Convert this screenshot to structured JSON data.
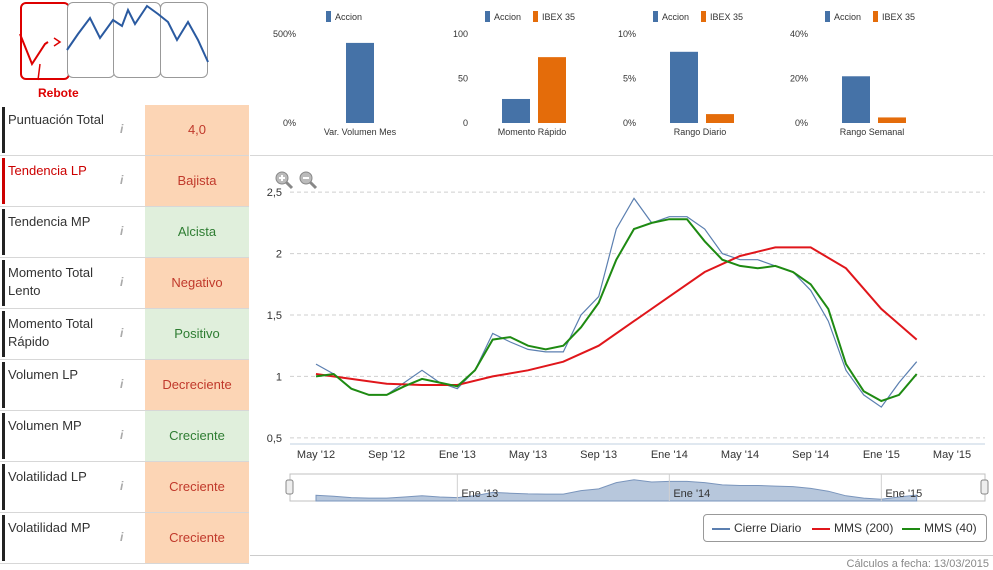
{
  "pattern": {
    "selected_label": "Rebote",
    "thumbnails": [
      "rebote",
      "pattern-2",
      "pattern-3",
      "pattern-4"
    ]
  },
  "indicators": [
    {
      "label": "Puntuación Total",
      "value": "4,0",
      "status": "neg",
      "highlight": false
    },
    {
      "label": "Tendencia LP",
      "value": "Bajista",
      "status": "neg",
      "highlight": true
    },
    {
      "label": "Tendencia MP",
      "value": "Alcista",
      "status": "pos",
      "highlight": false
    },
    {
      "label": "Momento Total Lento",
      "value": "Negativo",
      "status": "neg",
      "highlight": false
    },
    {
      "label": "Momento Total Rápido",
      "value": "Positivo",
      "status": "pos",
      "highlight": false
    },
    {
      "label": "Volumen LP",
      "value": "Decreciente",
      "status": "neg",
      "highlight": false
    },
    {
      "label": "Volumen MP",
      "value": "Creciente",
      "status": "pos",
      "highlight": false
    },
    {
      "label": "Volatilidad LP",
      "value": "Creciente",
      "status": "neg",
      "highlight": false
    },
    {
      "label": "Volatilidad MP",
      "value": "Creciente",
      "status": "neg",
      "highlight": false
    }
  ],
  "info_glyph": "i",
  "colors": {
    "accion": "#4572a7",
    "ibex": "#e46c0a",
    "price": "#5b7fb0",
    "mms200": "#e0161b",
    "mms40": "#1e8a12",
    "neg_bg": "#fcd5b5",
    "pos_bg": "#e0efdc"
  },
  "mini_charts": [
    {
      "title": "Var. Volumen Mes",
      "legend": [
        "Accion"
      ],
      "yticks": [
        "500%",
        "0%"
      ],
      "ymax": 500,
      "values": {
        "Accion": 450
      }
    },
    {
      "title": "Momento Rápido",
      "legend": [
        "Accion",
        "IBEX 35"
      ],
      "yticks": [
        "100",
        "50",
        "0"
      ],
      "ymax": 100,
      "values": {
        "Accion": 27,
        "IBEX 35": 74
      }
    },
    {
      "title": "Rango Diario",
      "legend": [
        "Accion",
        "IBEX 35"
      ],
      "yticks": [
        "10%",
        "5%",
        "0%"
      ],
      "ymax": 10,
      "values": {
        "Accion": 8,
        "IBEX 35": 1
      }
    },
    {
      "title": "Rango Semanal",
      "legend": [
        "Accion",
        "IBEX 35"
      ],
      "yticks": [
        "40%",
        "20%",
        "0%"
      ],
      "ymax": 40,
      "values": {
        "Accion": 21,
        "IBEX 35": 2.5
      }
    }
  ],
  "chart_data": {
    "type": "line",
    "y_ticks": [
      "2,5",
      "2",
      "1,5",
      "1",
      "0,5"
    ],
    "y_tick_values": [
      2.5,
      2.0,
      1.5,
      1.0,
      0.5
    ],
    "ylim": [
      0.45,
      2.55
    ],
    "x_ticks": [
      "May '12",
      "Sep '12",
      "Ene '13",
      "May '13",
      "Sep '13",
      "Ene '14",
      "May '14",
      "Sep '14",
      "Ene '15",
      "May '15"
    ],
    "navigator_ticks": [
      "Ene '13",
      "Ene '14",
      "Ene '15"
    ],
    "series": [
      {
        "name": "Cierre Diario",
        "color": "#5b7fb0",
        "x": [
          "May '12",
          "Jun '12",
          "Jul '12",
          "Ago '12",
          "Sep '12",
          "Oct '12",
          "Nov '12",
          "Dic '12",
          "Ene '13",
          "Feb '13",
          "Mar '13",
          "Abr '13",
          "May '13",
          "Jun '13",
          "Jul '13",
          "Ago '13",
          "Sep '13",
          "Oct '13",
          "Nov '13",
          "Dic '13",
          "Ene '14",
          "Feb '14",
          "Mar '14",
          "Abr '14",
          "May '14",
          "Jun '14",
          "Jul '14",
          "Ago '14",
          "Sep '14",
          "Oct '14",
          "Nov '14",
          "Dic '14",
          "Ene '15",
          "Feb '15",
          "Mar '15"
        ],
        "values": [
          1.1,
          1.02,
          0.9,
          0.85,
          0.85,
          0.95,
          1.05,
          0.95,
          0.9,
          1.05,
          1.35,
          1.28,
          1.22,
          1.2,
          1.2,
          1.5,
          1.65,
          2.2,
          2.45,
          2.25,
          2.3,
          2.3,
          2.2,
          2.0,
          1.95,
          1.95,
          1.9,
          1.85,
          1.7,
          1.45,
          1.05,
          0.85,
          0.75,
          0.95,
          1.12
        ]
      },
      {
        "name": "MMS (200)",
        "color": "#e0161b",
        "x": [
          "May '12",
          "Jul '12",
          "Sep '12",
          "Nov '12",
          "Ene '13",
          "Mar '13",
          "May '13",
          "Jul '13",
          "Sep '13",
          "Nov '13",
          "Ene '14",
          "Mar '14",
          "May '14",
          "Jul '14",
          "Sep '14",
          "Nov '14",
          "Ene '15",
          "Mar '15"
        ],
        "values": [
          1.02,
          0.98,
          0.94,
          0.93,
          0.93,
          1.0,
          1.05,
          1.12,
          1.25,
          1.45,
          1.65,
          1.85,
          1.98,
          2.05,
          2.05,
          1.88,
          1.55,
          1.3
        ]
      },
      {
        "name": "MMS (40)",
        "color": "#1e8a12",
        "x": [
          "May '12",
          "Jun '12",
          "Jul '12",
          "Ago '12",
          "Sep '12",
          "Oct '12",
          "Nov '12",
          "Dic '12",
          "Ene '13",
          "Feb '13",
          "Mar '13",
          "Abr '13",
          "May '13",
          "Jun '13",
          "Jul '13",
          "Ago '13",
          "Sep '13",
          "Oct '13",
          "Nov '13",
          "Dic '13",
          "Ene '14",
          "Feb '14",
          "Mar '14",
          "Abr '14",
          "May '14",
          "Jun '14",
          "Jul '14",
          "Ago '14",
          "Sep '14",
          "Oct '14",
          "Nov '14",
          "Dic '14",
          "Ene '15",
          "Feb '15",
          "Mar '15"
        ],
        "values": [
          1.0,
          1.02,
          0.9,
          0.85,
          0.85,
          0.92,
          0.98,
          0.95,
          0.92,
          1.05,
          1.3,
          1.32,
          1.25,
          1.22,
          1.25,
          1.4,
          1.6,
          1.95,
          2.2,
          2.25,
          2.28,
          2.28,
          2.1,
          1.95,
          1.9,
          1.88,
          1.9,
          1.85,
          1.75,
          1.55,
          1.1,
          0.88,
          0.8,
          0.85,
          1.02
        ]
      }
    ],
    "legend_placement": "bottom-right",
    "grid": true
  },
  "footer": {
    "note": "Cálculos a fecha: 13/03/2015"
  }
}
